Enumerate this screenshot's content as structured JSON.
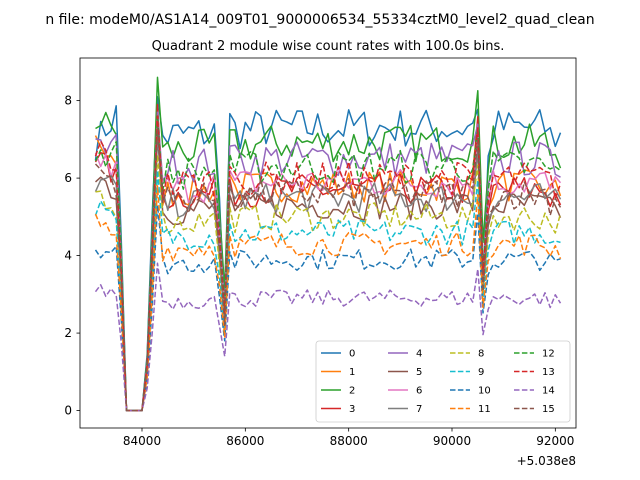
{
  "figure": {
    "suptitle": "n file: modeM0/AS1A14_009T01_9000006534_55334cztM0_level2_quad_clean",
    "title": "Quadrant 2 module wise count rates with 100.0s bins.",
    "x_offset_label": "+5.038e8"
  },
  "chart_data": {
    "type": "line",
    "title": "Quadrant 2 module wise count rates with 100.0s bins.",
    "xlabel": "",
    "ylabel": "",
    "x_offset": 503800000,
    "xlim": [
      82800,
      92400
    ],
    "ylim": [
      -0.45,
      9.1
    ],
    "xticks": [
      84000,
      86000,
      88000,
      90000,
      92000
    ],
    "xtick_labels": [
      "84000",
      "86000",
      "88000",
      "90000",
      "92000"
    ],
    "yticks": [
      0,
      2,
      4,
      6,
      8
    ],
    "ytick_labels": [
      "0",
      "2",
      "4",
      "6",
      "8"
    ],
    "grid": false,
    "legend_position": "lower-right",
    "legend_columns": 4,
    "x_start": 83100,
    "x_step": 100,
    "x_end": 92100,
    "gaps": [
      {
        "from": 83750,
        "to": 84050,
        "level": 0
      },
      {
        "dip_at": 85550
      }
    ],
    "series": [
      {
        "name": "0",
        "color": "#1f77b4",
        "dash": "solid",
        "level": 7.3,
        "start": 6.9,
        "dip": 2.3,
        "peak": 8.1
      },
      {
        "name": "1",
        "color": "#ff7f0e",
        "dash": "solid",
        "level": 5.8,
        "start": 7.2,
        "dip": 2.4,
        "peak": 7.8
      },
      {
        "name": "2",
        "color": "#2ca02c",
        "dash": "solid",
        "level": 6.9,
        "start": 7.5,
        "dip": 3.1,
        "peak": 8.6
      },
      {
        "name": "3",
        "color": "#d62728",
        "dash": "solid",
        "level": 5.7,
        "start": 6.6,
        "dip": 2.5,
        "peak": 7.9
      },
      {
        "name": "4",
        "color": "#9467bd",
        "dash": "solid",
        "level": 6.5,
        "start": 6.7,
        "dip": 2.6,
        "peak": 7.7
      },
      {
        "name": "5",
        "color": "#8c564b",
        "dash": "solid",
        "level": 5.3,
        "start": 6.2,
        "dip": 2.2,
        "peak": 7.2
      },
      {
        "name": "6",
        "color": "#e377c2",
        "dash": "solid",
        "level": 5.9,
        "start": 6.5,
        "dip": 2.4,
        "peak": 7.5
      },
      {
        "name": "7",
        "color": "#7f7f7f",
        "dash": "solid",
        "level": 5.5,
        "start": 5.9,
        "dip": 2.3,
        "peak": 7.0
      },
      {
        "name": "8",
        "color": "#bcbd22",
        "dash": "dashed",
        "level": 5.0,
        "start": 5.7,
        "dip": 2.1,
        "peak": 6.6
      },
      {
        "name": "9",
        "color": "#17becf",
        "dash": "dashed",
        "level": 4.6,
        "start": 5.3,
        "dip": 2.0,
        "peak": 6.2
      },
      {
        "name": "10",
        "color": "#1f77b4",
        "dash": "dashed",
        "level": 3.9,
        "start": 4.2,
        "dip": 1.8,
        "peak": 5.3
      },
      {
        "name": "11",
        "color": "#ff7f0e",
        "dash": "dashed",
        "level": 4.3,
        "start": 4.9,
        "dip": 1.9,
        "peak": 5.8
      },
      {
        "name": "12",
        "color": "#2ca02c",
        "dash": "dashed",
        "level": 6.3,
        "start": 6.6,
        "dip": 2.6,
        "peak": 7.6
      },
      {
        "name": "13",
        "color": "#d62728",
        "dash": "dashed",
        "level": 6.0,
        "start": 6.8,
        "dip": 2.5,
        "peak": 7.6
      },
      {
        "name": "14",
        "color": "#9467bd",
        "dash": "dashed",
        "level": 2.9,
        "start": 3.1,
        "dip": 1.4,
        "peak": 3.8
      },
      {
        "name": "15",
        "color": "#8c564b",
        "dash": "dashed",
        "level": 5.6,
        "start": 6.3,
        "dip": 2.2,
        "peak": 7.3
      }
    ]
  }
}
